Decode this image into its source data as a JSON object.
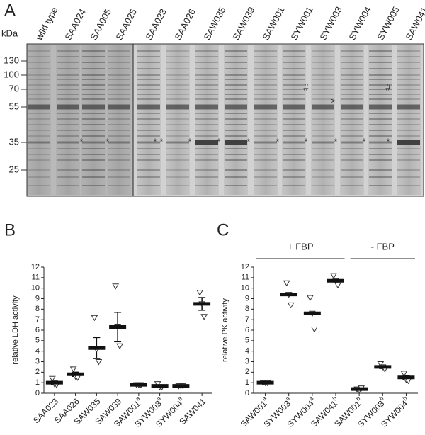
{
  "panel_labels": [
    "A",
    "B",
    "C"
  ],
  "gel": {
    "lanes": [
      "wild type",
      "SAA024",
      "SAA005",
      "SAA025",
      "SAA023",
      "SAA026",
      "SAW035",
      "SAW039",
      "SAW001",
      "SYW001",
      "SYW003",
      "SYW004",
      "SYW005",
      "SAW041"
    ],
    "unit": "kDa",
    "markers": [
      130,
      100,
      70,
      55,
      35,
      25
    ],
    "symbols": {
      "star": "*",
      "hash": "#",
      "arrow": ">"
    }
  },
  "chart_data": [
    {
      "type": "dot",
      "ylabel": "relative LDH activity",
      "categories": [
        {
          "name": "SAA023"
        },
        {
          "name": "SAA026"
        },
        {
          "name": "SAW035"
        },
        {
          "name": "SAW039"
        },
        {
          "name": "SAW001",
          "sup": "a"
        },
        {
          "name": "SYW003",
          "sup": "a"
        },
        {
          "name": "SYW004",
          "sup": "a"
        },
        {
          "name": "SAW041"
        }
      ],
      "values": [
        1.0,
        1.8,
        4.3,
        6.3,
        0.8,
        0.7,
        0.7,
        8.5
      ],
      "errors": [
        0.15,
        0.2,
        1.0,
        1.4,
        0.05,
        0.1,
        0.05,
        0.6
      ],
      "points": [
        [
          1.4,
          0.9,
          0.8
        ],
        [
          2.3,
          1.6,
          1.5
        ],
        [
          7.2,
          4.2,
          3.0
        ],
        [
          10.2,
          6.3,
          4.5
        ],
        [
          0.8,
          0.8,
          0.8
        ],
        [
          0.9,
          0.6,
          0.6
        ],
        [
          0.7,
          0.7,
          0.7
        ],
        [
          9.6,
          8.5,
          7.3
        ]
      ],
      "ylim": [
        0,
        12
      ],
      "yticks": [
        0,
        1,
        2,
        3,
        4,
        5,
        6,
        7,
        8,
        9,
        10,
        11,
        12
      ]
    },
    {
      "type": "dot",
      "ylabel": "relative PK activity",
      "categories": [
        {
          "name": "SAW001",
          "sup": "a"
        },
        {
          "name": "SYW003",
          "sup": "a"
        },
        {
          "name": "SYW004",
          "sup": "a"
        },
        {
          "name": "SAW041",
          "sup": "b"
        },
        {
          "name": "SAW001",
          "sup": "b"
        },
        {
          "name": "SYW003",
          "sup": "b"
        },
        {
          "name": "SYW004",
          "sup": "b"
        }
      ],
      "values": [
        1.0,
        9.4,
        7.6,
        10.7,
        0.4,
        2.5,
        1.5
      ],
      "errors": [
        0.05,
        0.1,
        0.1,
        0.1,
        0.05,
        0.15,
        0.2
      ],
      "points": [
        [
          1.0,
          1.0,
          1.0
        ],
        [
          10.5,
          9.4,
          8.4
        ],
        [
          9.1,
          7.6,
          6.1
        ],
        [
          11.2,
          10.7,
          10.3
        ],
        [
          0.4,
          0.3,
          0.5
        ],
        [
          2.8,
          2.5,
          2.3
        ],
        [
          1.9,
          1.3,
          1.2
        ]
      ],
      "groups": [
        {
          "label": "+ FBP",
          "start": 0,
          "end": 3
        },
        {
          "label": "- FBP",
          "start": 4,
          "end": 6
        }
      ],
      "ylim": [
        0,
        12
      ],
      "yticks": [
        0,
        1,
        2,
        3,
        4,
        5,
        6,
        7,
        8,
        9,
        10,
        11,
        12
      ]
    }
  ]
}
